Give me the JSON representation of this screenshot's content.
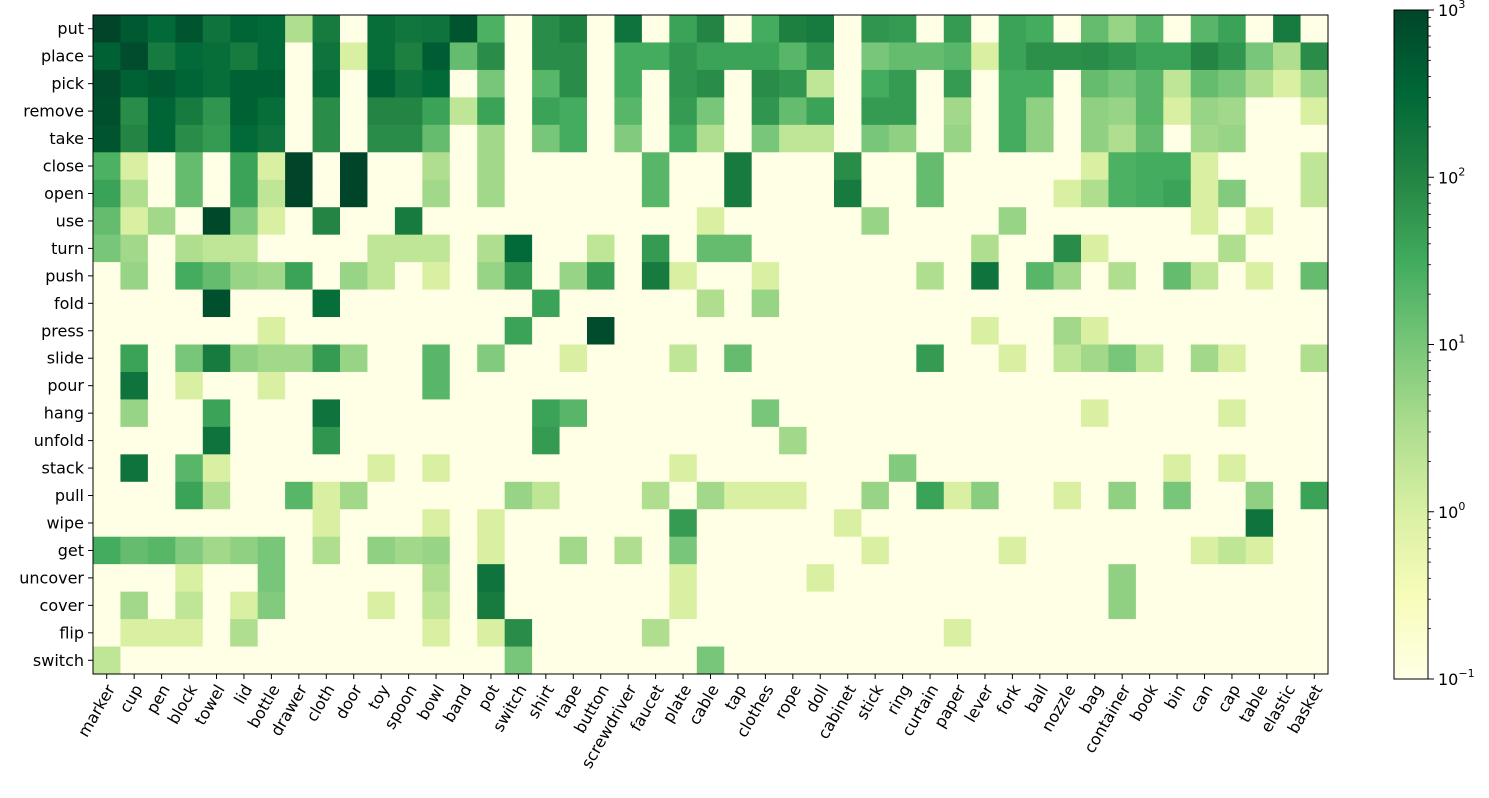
{
  "chart_data": {
    "type": "heatmap",
    "title": "",
    "xlabel": "",
    "ylabel": "",
    "colormap": "YlGn",
    "scale": "log",
    "colorbar": {
      "range": [
        0.1,
        1000
      ],
      "ticks": [
        {
          "value": 0.1,
          "base": "10",
          "exp": "−1"
        },
        {
          "value": 1,
          "base": "10",
          "exp": "0"
        },
        {
          "value": 10,
          "base": "10",
          "exp": "1"
        },
        {
          "value": 100,
          "base": "10",
          "exp": "2"
        },
        {
          "value": 1000,
          "base": "10",
          "exp": "3"
        }
      ]
    },
    "rows": [
      "put",
      "place",
      "pick",
      "remove",
      "take",
      "close",
      "open",
      "use",
      "turn",
      "push",
      "fold",
      "press",
      "slide",
      "pour",
      "hang",
      "unfold",
      "stack",
      "pull",
      "wipe",
      "get",
      "uncover",
      "cover",
      "flip",
      "switch"
    ],
    "columns": [
      "marker",
      "cup",
      "pen",
      "block",
      "towel",
      "lid",
      "bottle",
      "drawer",
      "cloth",
      "door",
      "toy",
      "spoon",
      "bowl",
      "band",
      "pot",
      "switch",
      "shirt",
      "tape",
      "button",
      "screwdriver",
      "faucet",
      "plate",
      "cable",
      "tap",
      "clothes",
      "rope",
      "doll",
      "cabinet",
      "stick",
      "ring",
      "curtain",
      "paper",
      "lever",
      "fork",
      "ball",
      "nozzle",
      "bag",
      "container",
      "book",
      "bin",
      "can",
      "cap",
      "table",
      "elastic",
      "basket"
    ],
    "values": [
      [
        1500,
        500,
        300,
        600,
        200,
        350,
        300,
        3,
        150,
        0,
        250,
        180,
        200,
        600,
        25,
        0,
        80,
        120,
        0,
        200,
        0,
        40,
        100,
        0,
        30,
        120,
        150,
        0,
        60,
        50,
        0,
        50,
        0,
        40,
        30,
        0,
        15,
        5,
        20,
        0,
        20,
        40,
        0,
        150,
        0
      ],
      [
        400,
        800,
        150,
        300,
        250,
        150,
        300,
        0,
        200,
        1,
        250,
        120,
        450,
        15,
        80,
        0,
        80,
        80,
        0,
        30,
        30,
        60,
        40,
        40,
        40,
        20,
        60,
        0,
        10,
        15,
        15,
        20,
        1,
        40,
        70,
        70,
        80,
        60,
        40,
        40,
        100,
        60,
        10,
        3,
        80
      ],
      [
        800,
        400,
        500,
        350,
        250,
        400,
        400,
        0,
        250,
        0,
        400,
        200,
        300,
        0,
        10,
        0,
        20,
        80,
        0,
        30,
        0,
        60,
        80,
        0,
        80,
        60,
        2,
        0,
        30,
        50,
        0,
        50,
        0,
        30,
        30,
        0,
        15,
        10,
        20,
        2,
        15,
        10,
        3,
        1,
        4
      ],
      [
        700,
        80,
        350,
        150,
        60,
        400,
        250,
        0,
        80,
        0,
        100,
        100,
        40,
        2,
        40,
        0,
        40,
        30,
        0,
        20,
        0,
        50,
        10,
        0,
        60,
        15,
        40,
        0,
        50,
        50,
        0,
        4,
        0,
        30,
        6,
        0,
        6,
        5,
        20,
        1,
        5,
        4,
        0,
        0,
        1
      ],
      [
        600,
        100,
        350,
        80,
        50,
        300,
        200,
        0,
        80,
        0,
        80,
        80,
        15,
        0,
        4,
        0,
        10,
        30,
        0,
        8,
        0,
        30,
        3,
        0,
        10,
        2,
        2,
        0,
        10,
        6,
        0,
        5,
        0,
        30,
        6,
        0,
        6,
        3,
        15,
        0,
        4,
        5,
        0,
        0,
        0
      ],
      [
        25,
        1,
        0,
        15,
        0,
        40,
        1,
        1200,
        0,
        1000,
        0,
        0,
        3,
        0,
        4,
        0,
        0,
        0,
        0,
        0,
        20,
        0,
        0,
        150,
        0,
        0,
        0,
        80,
        0,
        0,
        15,
        0,
        0,
        0,
        0,
        0,
        1,
        25,
        30,
        30,
        1,
        0,
        0,
        0,
        2
      ],
      [
        40,
        3,
        0,
        15,
        0,
        40,
        2,
        1200,
        0,
        1000,
        0,
        0,
        4,
        0,
        4,
        0,
        0,
        0,
        0,
        0,
        20,
        0,
        0,
        150,
        0,
        0,
        0,
        150,
        0,
        0,
        15,
        0,
        0,
        0,
        0,
        1,
        3,
        25,
        30,
        40,
        1,
        8,
        0,
        0,
        2
      ],
      [
        15,
        1,
        4,
        0,
        900,
        8,
        1,
        0,
        100,
        0,
        0,
        150,
        0,
        0,
        0,
        0,
        0,
        0,
        0,
        0,
        0,
        0,
        1,
        0,
        0,
        0,
        0,
        0,
        5,
        0,
        0,
        0,
        0,
        5,
        0,
        0,
        0,
        0,
        0,
        0,
        1,
        0,
        1,
        0,
        0
      ],
      [
        10,
        4,
        0,
        3,
        2,
        2,
        0,
        0,
        0,
        0,
        2,
        2,
        2,
        0,
        3,
        300,
        0,
        0,
        2,
        0,
        50,
        0,
        15,
        15,
        0,
        0,
        0,
        0,
        0,
        0,
        0,
        0,
        3,
        0,
        0,
        80,
        1,
        0,
        0,
        0,
        0,
        3,
        0,
        0,
        0
      ],
      [
        0,
        5,
        0,
        30,
        15,
        5,
        4,
        40,
        0,
        5,
        2,
        0,
        1,
        0,
        5,
        50,
        0,
        5,
        50,
        0,
        150,
        1,
        0,
        0,
        1,
        0,
        0,
        0,
        0,
        0,
        3,
        0,
        200,
        0,
        20,
        4,
        0,
        3,
        0,
        15,
        2,
        0,
        1,
        0,
        15
      ],
      [
        0,
        0,
        0,
        0,
        700,
        0,
        0,
        0,
        250,
        0,
        0,
        0,
        0,
        0,
        0,
        0,
        40,
        0,
        0,
        0,
        0,
        0,
        3,
        0,
        5,
        0,
        0,
        0,
        0,
        0,
        0,
        0,
        0,
        0,
        0,
        0,
        0,
        0,
        0,
        0,
        0,
        0,
        0,
        0,
        0
      ],
      [
        0,
        0,
        0,
        0,
        0,
        0,
        1,
        0,
        0,
        0,
        0,
        0,
        0,
        0,
        0,
        40,
        0,
        0,
        800,
        0,
        0,
        0,
        0,
        0,
        0,
        0,
        0,
        0,
        0,
        0,
        0,
        0,
        1,
        0,
        0,
        4,
        1,
        0,
        0,
        0,
        0,
        0,
        0,
        0,
        0
      ],
      [
        0,
        40,
        0,
        10,
        150,
        6,
        4,
        4,
        50,
        5,
        0,
        0,
        20,
        0,
        8,
        0,
        0,
        1,
        0,
        0,
        0,
        2,
        0,
        15,
        0,
        0,
        0,
        0,
        0,
        0,
        50,
        0,
        0,
        1,
        0,
        2,
        4,
        10,
        2,
        0,
        4,
        1,
        0,
        0,
        3
      ],
      [
        0,
        200,
        0,
        1,
        0,
        0,
        1,
        0,
        0,
        0,
        0,
        0,
        20,
        0,
        0,
        0,
        0,
        0,
        0,
        0,
        0,
        0,
        0,
        0,
        0,
        0,
        0,
        0,
        0,
        0,
        0,
        0,
        0,
        0,
        0,
        0,
        0,
        0,
        0,
        0,
        0,
        0,
        0,
        0,
        0
      ],
      [
        0,
        5,
        0,
        0,
        40,
        0,
        0,
        0,
        200,
        0,
        0,
        0,
        0,
        0,
        0,
        0,
        40,
        20,
        0,
        0,
        0,
        0,
        0,
        0,
        10,
        0,
        0,
        0,
        0,
        0,
        0,
        0,
        0,
        0,
        0,
        0,
        1,
        0,
        0,
        0,
        0,
        1,
        0,
        0,
        0
      ],
      [
        0,
        0,
        0,
        0,
        200,
        0,
        0,
        0,
        60,
        0,
        0,
        0,
        0,
        0,
        0,
        0,
        50,
        0,
        0,
        0,
        0,
        0,
        0,
        0,
        0,
        4,
        0,
        0,
        0,
        0,
        0,
        0,
        0,
        0,
        0,
        0,
        0,
        0,
        0,
        0,
        0,
        0,
        0,
        0,
        0
      ],
      [
        0,
        200,
        0,
        20,
        1,
        0,
        0,
        0,
        0,
        0,
        1,
        0,
        1,
        0,
        0,
        0,
        0,
        0,
        0,
        0,
        0,
        1,
        0,
        0,
        0,
        0,
        0,
        0,
        0,
        8,
        0,
        0,
        0,
        0,
        0,
        0,
        0,
        0,
        0,
        1,
        0,
        1,
        0,
        0,
        0
      ],
      [
        0,
        0,
        0,
        40,
        3,
        0,
        0,
        20,
        1,
        4,
        0,
        0,
        0,
        0,
        0,
        5,
        2,
        0,
        0,
        0,
        3,
        0,
        4,
        1,
        1,
        1,
        0,
        0,
        5,
        0,
        40,
        1,
        7,
        0,
        0,
        1,
        0,
        6,
        0,
        10,
        0,
        0,
        6,
        0,
        40
      ],
      [
        0,
        0,
        0,
        0,
        0,
        0,
        0,
        0,
        1,
        0,
        0,
        0,
        1,
        0,
        1,
        0,
        0,
        0,
        0,
        0,
        0,
        50,
        0,
        0,
        0,
        0,
        0,
        1,
        0,
        0,
        0,
        0,
        0,
        0,
        0,
        0,
        0,
        0,
        0,
        0,
        0,
        0,
        200,
        0,
        0
      ],
      [
        30,
        15,
        20,
        8,
        4,
        6,
        10,
        0,
        3,
        0,
        6,
        4,
        5,
        0,
        1,
        0,
        0,
        4,
        0,
        3,
        0,
        10,
        0,
        0,
        0,
        0,
        0,
        0,
        1,
        0,
        0,
        0,
        0,
        1,
        0,
        0,
        0,
        0,
        0,
        0,
        1,
        2,
        1,
        0,
        0
      ],
      [
        0,
        0,
        0,
        1,
        0,
        0,
        10,
        0,
        0,
        0,
        0,
        0,
        3,
        0,
        200,
        0,
        0,
        0,
        0,
        0,
        0,
        1,
        0,
        0,
        0,
        0,
        1,
        0,
        0,
        0,
        0,
        0,
        0,
        0,
        0,
        0,
        0,
        6,
        0,
        0,
        0,
        0,
        0,
        0,
        0
      ],
      [
        0,
        4,
        0,
        2,
        0,
        1,
        8,
        0,
        0,
        0,
        1,
        0,
        2,
        0,
        150,
        0,
        0,
        0,
        0,
        0,
        0,
        1,
        0,
        0,
        0,
        0,
        0,
        0,
        0,
        0,
        0,
        0,
        0,
        0,
        0,
        0,
        0,
        6,
        0,
        0,
        0,
        0,
        0,
        0,
        0
      ],
      [
        0,
        1,
        1,
        1,
        0,
        3,
        0,
        0,
        0,
        0,
        0,
        0,
        1,
        0,
        1,
        80,
        0,
        0,
        0,
        0,
        3,
        0,
        0,
        0,
        0,
        0,
        0,
        0,
        0,
        0,
        0,
        1,
        0,
        0,
        0,
        0,
        0,
        0,
        0,
        0,
        0,
        0,
        0,
        0,
        0
      ],
      [
        2,
        0,
        0,
        0,
        0,
        0,
        0,
        0,
        0,
        0,
        0,
        0,
        0,
        0,
        0,
        10,
        0,
        0,
        0,
        0,
        0,
        0,
        10,
        0,
        0,
        0,
        0,
        0,
        0,
        0,
        0,
        0,
        0,
        0,
        0,
        0,
        0,
        0,
        0,
        0,
        0,
        0,
        0,
        0,
        0
      ]
    ]
  }
}
